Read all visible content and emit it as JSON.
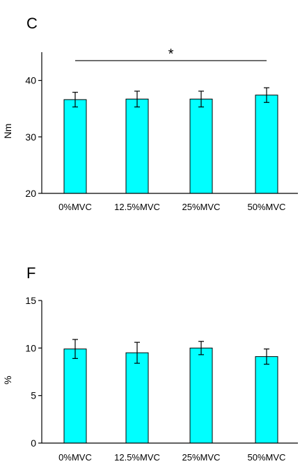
{
  "chart_data": [
    {
      "type": "bar",
      "panel_label": "C",
      "categories": [
        "0%MVC",
        "12.5%MVC",
        "25%MVC",
        "50%MVC"
      ],
      "values": [
        36.6,
        36.7,
        36.7,
        37.4
      ],
      "errors": [
        1.3,
        1.4,
        1.4,
        1.3
      ],
      "ylabel": "Nm",
      "ylim": [
        20,
        45
      ],
      "yticks": [
        20,
        30,
        40
      ],
      "bar_color": "#00ffff",
      "grid": false,
      "significance": {
        "from": "0%MVC",
        "to": "50%MVC",
        "level": 43.5,
        "mark": "*"
      }
    },
    {
      "type": "bar",
      "panel_label": "F",
      "categories": [
        "0%MVC",
        "12.5%MVC",
        "25%MVC",
        "50%MVC"
      ],
      "values": [
        9.9,
        9.5,
        10.0,
        9.1
      ],
      "errors": [
        1.0,
        1.1,
        0.7,
        0.8
      ],
      "ylabel": "%",
      "ylim": [
        0,
        15
      ],
      "yticks": [
        0,
        5,
        10,
        15
      ],
      "bar_color": "#00ffff",
      "grid": false
    }
  ]
}
